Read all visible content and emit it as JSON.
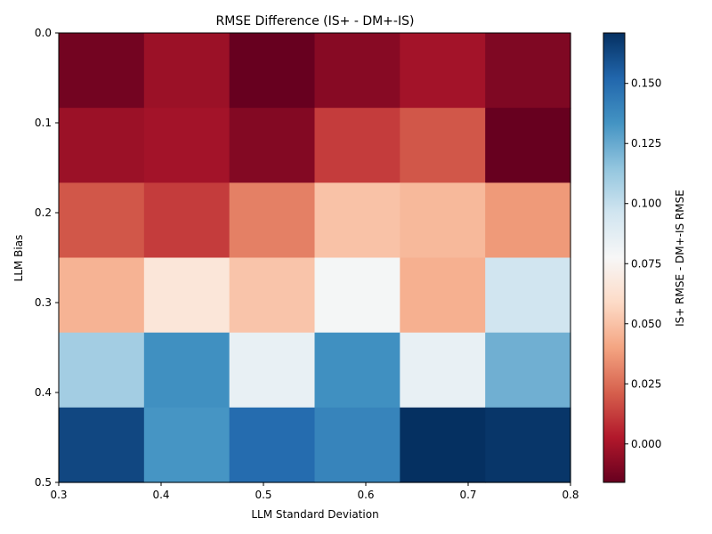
{
  "chart_data": {
    "type": "heatmap",
    "title": "RMSE Difference (IS+ - DM+-IS)",
    "xlabel": "LLM Standard Deviation",
    "ylabel": "LLM Bias",
    "colorbar_label": "IS+ RMSE - DM+-IS RMSE",
    "xlim": [
      0.3,
      0.8
    ],
    "ylim": [
      0.0,
      0.5
    ],
    "x_ticks": [
      "0.3",
      "0.4",
      "0.5",
      "0.6",
      "0.7",
      "0.8"
    ],
    "y_ticks": [
      "0.0",
      "0.1",
      "0.2",
      "0.3",
      "0.4",
      "0.5"
    ],
    "colorbar_range": [
      -0.016,
      0.171
    ],
    "colorbar_ticks": [
      "0.000",
      "0.025",
      "0.050",
      "0.075",
      "0.100",
      "0.125",
      "0.150"
    ],
    "colormap": "RdBu",
    "x_values": [
      0.3,
      0.4,
      0.5,
      0.6,
      0.7,
      0.8
    ],
    "y_values": [
      0.0,
      0.1,
      0.2,
      0.3,
      0.4,
      0.5
    ],
    "values": [
      [
        -0.013,
        -0.003,
        -0.016,
        -0.008,
        -0.001,
        -0.01
      ],
      [
        -0.003,
        -0.001,
        -0.009,
        0.012,
        0.019,
        -0.016
      ],
      [
        0.019,
        0.012,
        0.03,
        0.05,
        0.047,
        0.037
      ],
      [
        0.045,
        0.066,
        0.051,
        0.079,
        0.044,
        0.096
      ],
      [
        0.11,
        0.135,
        0.085,
        0.135,
        0.085,
        0.123
      ],
      [
        0.163,
        0.133,
        0.15,
        0.14,
        0.171,
        0.169
      ]
    ]
  }
}
